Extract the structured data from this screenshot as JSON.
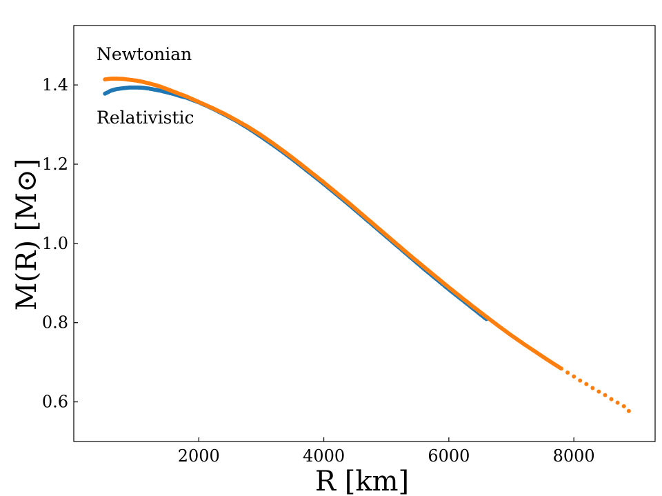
{
  "chart_data": {
    "type": "scatter",
    "title": "",
    "xlabel": "R [km]",
    "ylabel": "M(R) [M⊙]",
    "xlim": [
      0,
      9300
    ],
    "ylim": [
      0.5,
      1.55
    ],
    "x_ticks": [
      2000,
      4000,
      6000,
      8000
    ],
    "x_tick_labels": [
      "2000",
      "4000",
      "6000",
      "8000"
    ],
    "y_ticks": [
      0.6,
      0.8,
      1.0,
      1.2,
      1.4
    ],
    "y_tick_labels": [
      "0.6",
      "0.8",
      "1.0",
      "1.2",
      "1.4"
    ],
    "grid": false,
    "annotations": [
      "Newtonian",
      "Relativistic"
    ],
    "series": [
      {
        "color": "#1f77b4",
        "x": [
          500,
          550,
          600,
          700,
          800,
          900,
          1000,
          1100,
          1200,
          1300,
          1400,
          1500,
          1600,
          1700,
          1800,
          1900,
          2000,
          2200,
          2400,
          2600,
          2800,
          3000,
          3200,
          3400,
          3600,
          3800,
          4000,
          4200,
          4400,
          4600,
          4800,
          5000,
          5200,
          5400,
          5600,
          5800,
          6000,
          6200,
          6400,
          6600
        ],
        "y": [
          1.378,
          1.382,
          1.386,
          1.39,
          1.392,
          1.3935,
          1.3935,
          1.393,
          1.391,
          1.388,
          1.385,
          1.381,
          1.377,
          1.372,
          1.368,
          1.362,
          1.356,
          1.342,
          1.326,
          1.309,
          1.29,
          1.269,
          1.247,
          1.224,
          1.2,
          1.175,
          1.15,
          1.124,
          1.098,
          1.071,
          1.044,
          1.017,
          0.99,
          0.963,
          0.936,
          0.91,
          0.884,
          0.859,
          0.834,
          0.809
        ]
      },
      {
        "color": "#ff7f0e",
        "x": [
          500,
          550,
          600,
          700,
          800,
          900,
          1000,
          1100,
          1200,
          1300,
          1400,
          1500,
          1600,
          1700,
          1800,
          1900,
          2000,
          2200,
          2400,
          2600,
          2800,
          3000,
          3200,
          3400,
          3600,
          3800,
          4000,
          4200,
          4400,
          4600,
          4800,
          5000,
          5200,
          5400,
          5600,
          5800,
          6000,
          6200,
          6400,
          6600,
          6800,
          7000,
          7200,
          7400,
          7600,
          7800,
          7900,
          8000,
          8100,
          8200,
          8300,
          8400,
          8500,
          8600,
          8700,
          8800,
          8880
        ],
        "y": [
          1.414,
          1.415,
          1.416,
          1.416,
          1.415,
          1.413,
          1.411,
          1.408,
          1.404,
          1.4,
          1.395,
          1.389,
          1.383,
          1.377,
          1.371,
          1.364,
          1.357,
          1.343,
          1.328,
          1.311,
          1.293,
          1.273,
          1.251,
          1.228,
          1.204,
          1.179,
          1.154,
          1.128,
          1.102,
          1.075,
          1.048,
          1.021,
          0.994,
          0.967,
          0.941,
          0.915,
          0.889,
          0.864,
          0.839,
          0.815,
          0.791,
          0.768,
          0.746,
          0.725,
          0.704,
          0.684,
          0.674,
          0.664,
          0.654,
          0.645,
          0.635,
          0.626,
          0.617,
          0.607,
          0.598,
          0.589,
          0.577
        ]
      }
    ]
  }
}
